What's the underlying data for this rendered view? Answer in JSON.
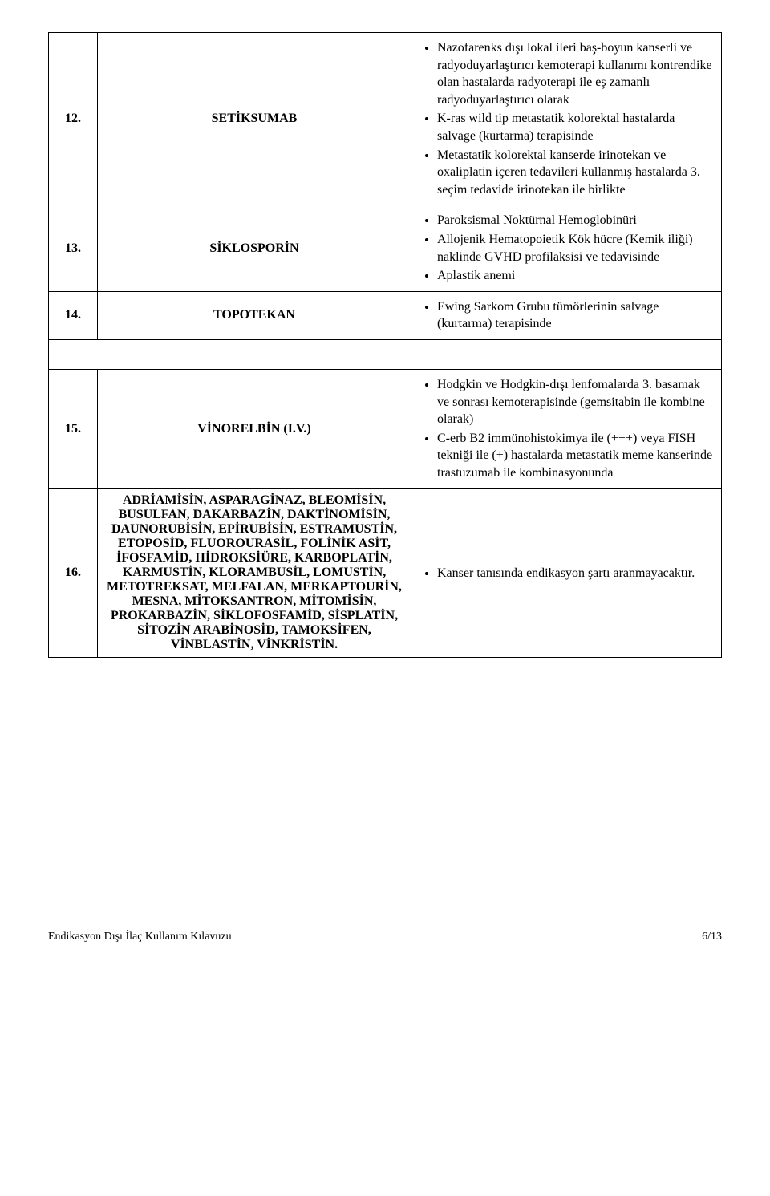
{
  "rows": [
    {
      "idx": "12.",
      "drug": "SETİKSUMAB",
      "bullets": [
        "Nazofarenks dışı lokal ileri baş-boyun kanserli ve radyoduyarlaştırıcı kemoterapi kullanımı kontrendike olan hastalarda radyoterapi ile eş zamanlı radyoduyarlaştırıcı olarak",
        "K-ras wild tip metastatik kolorektal hastalarda salvage (kurtarma) terapisinde",
        "Metastatik kolorektal kanserde irinotekan ve oxaliplatin içeren tedavileri kullanmış hastalarda 3. seçim tedavide irinotekan ile birlikte"
      ]
    },
    {
      "idx": "13.",
      "drug": "SİKLOSPORİN",
      "bullets": [
        "Paroksismal Noktürnal Hemoglobinüri",
        "Allojenik Hematopoietik Kök hücre (Kemik iliği) naklinde GVHD profilaksisi ve tedavisinde",
        "Aplastik anemi"
      ]
    },
    {
      "idx": "14.",
      "drug": "TOPOTEKAN",
      "bullets": [
        "Ewing Sarkom Grubu tümörlerinin salvage (kurtarma) terapisinde"
      ]
    },
    {
      "idx": "15.",
      "drug": "VİNORELBİN (I.V.)",
      "bullets": [
        "Hodgkin ve Hodgkin-dışı lenfomalarda 3. basamak ve sonrası kemoterapisinde (gemsitabin ile kombine olarak)",
        "C-erb B2 immünohistokimya ile (+++) veya FISH tekniği ile (+) hastalarda metastatik meme kanserinde trastuzumab ile kombinasyonunda"
      ]
    },
    {
      "idx": "16.",
      "drug": "ADRİAMİSİN, ASPARAGİNAZ, BLEOMİSİN, BUSULFAN, DAKARBAZİN, DAKTİNOMİSİN, DAUNORUBİSİN, EPİRUBİSİN, ESTRAMUSTİN, ETOPOSİD, FLUOROURASİL, FOLİNİK ASİT, İFOSFAMİD, HİDROKSİÜRE, KARBOPLATİN, KARMUSTİN, KLORAMBUSİL, LOMUSTİN, METOTREKSAT, MELFALAN, MERKAPTOURİN, MESNA, MİTOKSANTRON, MİTOMİSİN, PROKARBAZİN, SİKLOFOSFAMİD, SİSPLATİN, SİTOZİN ARABİNOSİD, TAMOKSİFEN, VİNBLASTİN, VİNKRİSTİN.",
      "bullets": [
        "Kanser tanısında endikasyon şartı aranmayacaktır."
      ]
    }
  ],
  "footer": {
    "left": "Endikasyon Dışı İlaç Kullanım Kılavuzu",
    "right": "6/13"
  }
}
